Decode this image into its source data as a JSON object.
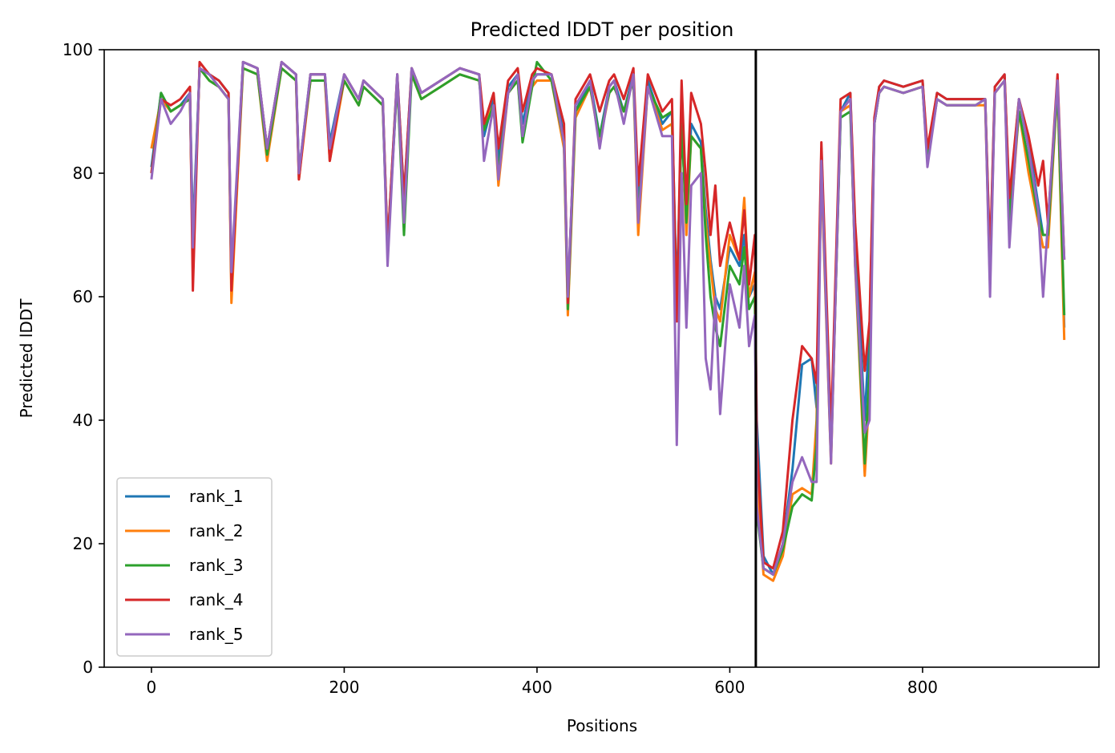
{
  "chart_data": {
    "type": "line",
    "title": "Predicted lDDT per position",
    "xlabel": "Positions",
    "ylabel": "Predicted lDDT",
    "xlim": [
      -49,
      983
    ],
    "ylim": [
      0,
      100
    ],
    "xticks": [
      0,
      200,
      400,
      600,
      800
    ],
    "yticks": [
      0,
      20,
      40,
      60,
      80,
      100
    ],
    "grid": false,
    "legend_position": "lower-left",
    "vline_x": 627,
    "vline_color": "#000000",
    "x": [
      0,
      10,
      20,
      30,
      40,
      43,
      50,
      60,
      70,
      80,
      83,
      95,
      110,
      120,
      135,
      150,
      153,
      165,
      180,
      185,
      200,
      215,
      220,
      240,
      245,
      255,
      262,
      270,
      280,
      290,
      300,
      320,
      340,
      345,
      355,
      360,
      370,
      380,
      385,
      395,
      400,
      415,
      428,
      432,
      440,
      455,
      465,
      475,
      480,
      490,
      500,
      505,
      515,
      530,
      540,
      545,
      550,
      555,
      560,
      570,
      575,
      580,
      585,
      590,
      600,
      610,
      615,
      620,
      626,
      628,
      635,
      645,
      655,
      665,
      675,
      685,
      690,
      695,
      705,
      715,
      725,
      730,
      740,
      745,
      750,
      755,
      760,
      780,
      800,
      805,
      815,
      825,
      835,
      845,
      855,
      865,
      870,
      875,
      885,
      890,
      900,
      910,
      920,
      925,
      930,
      940,
      947
    ],
    "series": [
      {
        "name": "rank_1",
        "color": "#1f77b4",
        "values": [
          81,
          93,
          90,
          91,
          93,
          70,
          97,
          96,
          95,
          93,
          62,
          98,
          97,
          84,
          98,
          96,
          80,
          96,
          96,
          85,
          96,
          92,
          95,
          92,
          68,
          96,
          76,
          97,
          93,
          94,
          95,
          97,
          96,
          86,
          92,
          82,
          94,
          96,
          88,
          95,
          96,
          96,
          86,
          60,
          90,
          95,
          86,
          94,
          95,
          90,
          96,
          75,
          95,
          88,
          90,
          60,
          88,
          72,
          88,
          85,
          74,
          66,
          60,
          58,
          68,
          65,
          70,
          60,
          62,
          40,
          18,
          15,
          20,
          32,
          49,
          50,
          42,
          84,
          35,
          90,
          93,
          70,
          40,
          55,
          88,
          94,
          95,
          94,
          95,
          83,
          93,
          92,
          92,
          92,
          92,
          92,
          65,
          94,
          96,
          75,
          92,
          85,
          75,
          70,
          70,
          95,
          55
        ]
      },
      {
        "name": "rank_2",
        "color": "#ff7f0e",
        "values": [
          84,
          92,
          90,
          91,
          92,
          66,
          97,
          95,
          94,
          92,
          59,
          97,
          96,
          82,
          97,
          95,
          79,
          95,
          95,
          82,
          95,
          91,
          94,
          91,
          68,
          95,
          74,
          96,
          92,
          93,
          94,
          96,
          95,
          88,
          91,
          78,
          93,
          95,
          86,
          94,
          95,
          95,
          84,
          57,
          89,
          94,
          85,
          93,
          94,
          90,
          95,
          70,
          94,
          87,
          88,
          58,
          90,
          70,
          86,
          84,
          72,
          65,
          58,
          56,
          70,
          66,
          76,
          60,
          64,
          30,
          15,
          14,
          18,
          28,
          29,
          28,
          40,
          80,
          33,
          90,
          91,
          65,
          31,
          45,
          88,
          93,
          94,
          93,
          94,
          82,
          92,
          91,
          91,
          91,
          91,
          91,
          62,
          93,
          95,
          70,
          90,
          80,
          72,
          68,
          68,
          94,
          53
        ]
      },
      {
        "name": "rank_3",
        "color": "#2ca02c",
        "values": [
          80,
          93,
          90,
          91,
          92,
          68,
          97,
          95,
          94,
          92,
          62,
          97,
          96,
          83,
          97,
          95,
          80,
          95,
          95,
          84,
          95,
          91,
          94,
          91,
          67,
          95,
          70,
          96,
          92,
          93,
          94,
          96,
          95,
          87,
          91,
          80,
          93,
          95,
          85,
          94,
          98,
          95,
          85,
          58,
          90,
          94,
          86,
          93,
          94,
          90,
          95,
          73,
          94,
          89,
          90,
          57,
          88,
          72,
          86,
          84,
          70,
          60,
          55,
          52,
          65,
          62,
          68,
          58,
          60,
          25,
          16,
          15,
          19,
          26,
          28,
          27,
          36,
          82,
          34,
          89,
          90,
          66,
          33,
          48,
          88,
          93,
          94,
          93,
          94,
          82,
          92,
          91,
          91,
          91,
          91,
          92,
          63,
          93,
          95,
          72,
          90,
          82,
          73,
          70,
          70,
          94,
          57
        ]
      },
      {
        "name": "rank_4",
        "color": "#d62728",
        "values": [
          80,
          92,
          91,
          92,
          94,
          61,
          98,
          96,
          95,
          93,
          61,
          98,
          97,
          84,
          98,
          96,
          79,
          96,
          96,
          82,
          96,
          92,
          95,
          92,
          68,
          96,
          76,
          97,
          93,
          94,
          95,
          97,
          96,
          88,
          93,
          84,
          95,
          97,
          90,
          96,
          97,
          96,
          88,
          59,
          92,
          96,
          90,
          95,
          96,
          92,
          97,
          78,
          96,
          90,
          92,
          56,
          95,
          75,
          93,
          88,
          80,
          70,
          78,
          65,
          72,
          66,
          74,
          62,
          70,
          36,
          17,
          16,
          22,
          40,
          52,
          50,
          46,
          85,
          38,
          92,
          93,
          72,
          48,
          56,
          89,
          94,
          95,
          94,
          95,
          84,
          93,
          92,
          92,
          92,
          92,
          92,
          66,
          94,
          96,
          76,
          92,
          86,
          78,
          82,
          72,
          96,
          66
        ]
      },
      {
        "name": "rank_5",
        "color": "#9467bd",
        "values": [
          79,
          92,
          88,
          90,
          93,
          68,
          97,
          96,
          94,
          92,
          64,
          98,
          97,
          84,
          98,
          96,
          80,
          96,
          96,
          84,
          96,
          92,
          95,
          92,
          65,
          96,
          72,
          97,
          93,
          94,
          95,
          97,
          96,
          82,
          91,
          79,
          93,
          96,
          86,
          95,
          96,
          96,
          85,
          60,
          91,
          95,
          84,
          94,
          95,
          88,
          96,
          72,
          94,
          86,
          86,
          36,
          80,
          55,
          78,
          80,
          50,
          45,
          60,
          41,
          62,
          55,
          65,
          52,
          57,
          26,
          16,
          15,
          20,
          30,
          34,
          30,
          30,
          82,
          33,
          90,
          92,
          65,
          38,
          40,
          88,
          93,
          94,
          93,
          94,
          81,
          92,
          91,
          91,
          91,
          91,
          92,
          60,
          93,
          95,
          68,
          92,
          84,
          74,
          60,
          72,
          95,
          66
        ]
      }
    ]
  }
}
